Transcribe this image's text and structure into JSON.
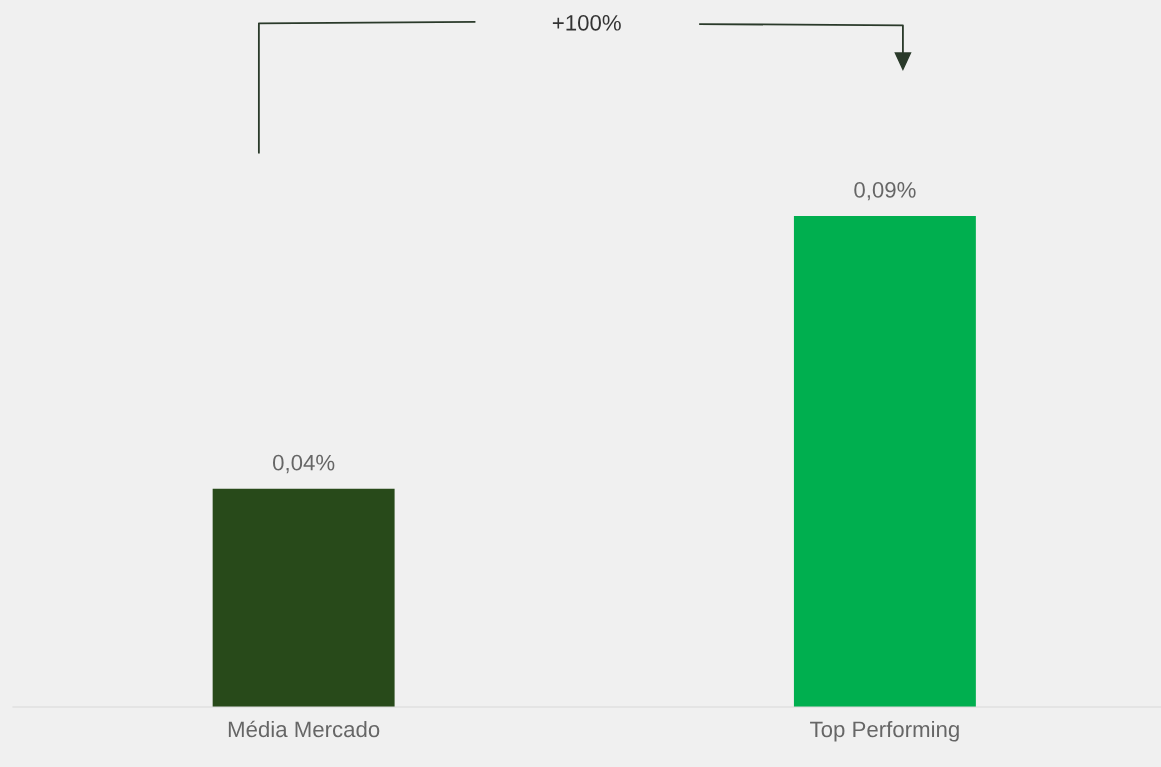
{
  "chart_data": {
    "type": "bar",
    "categories": [
      "Média Mercado",
      "Top Performing"
    ],
    "values": [
      0.04,
      0.09
    ],
    "colors": [
      "#284a1a",
      "#00af4f"
    ],
    "value_labels": [
      "0,04%",
      "0,09%"
    ],
    "annotations": [
      "+100%"
    ],
    "grid": false,
    "legend": false
  }
}
